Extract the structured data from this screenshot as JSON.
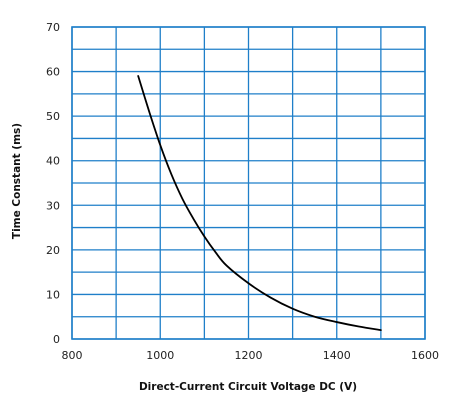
{
  "chart_data": {
    "type": "line",
    "title": "",
    "xlabel": "Direct-Current  Circuit Voltage DC (V)",
    "ylabel": "Time Constant (ms)",
    "xlim": [
      800,
      1600
    ],
    "ylim": [
      0,
      70
    ],
    "x_ticks": [
      "800",
      "1000",
      "1200",
      "1400",
      "1600"
    ],
    "y_ticks": [
      "0",
      "10",
      "20",
      "30",
      "40",
      "50",
      "60",
      "70"
    ],
    "grid": {
      "on": true,
      "x_step": 100,
      "y_step": 5,
      "color": "#1f7fc9"
    },
    "legend": "none",
    "series": [
      {
        "color": "#000000",
        "x": [
          950,
          975,
          1000,
          1025,
          1050,
          1075,
          1100,
          1125,
          1150,
          1200,
          1250,
          1300,
          1350,
          1400,
          1450,
          1500
        ],
        "y": [
          59,
          51,
          43.5,
          37,
          31.5,
          27,
          23,
          19.5,
          16.5,
          12.5,
          9.3,
          6.8,
          5,
          3.8,
          2.8,
          2
        ]
      }
    ]
  }
}
